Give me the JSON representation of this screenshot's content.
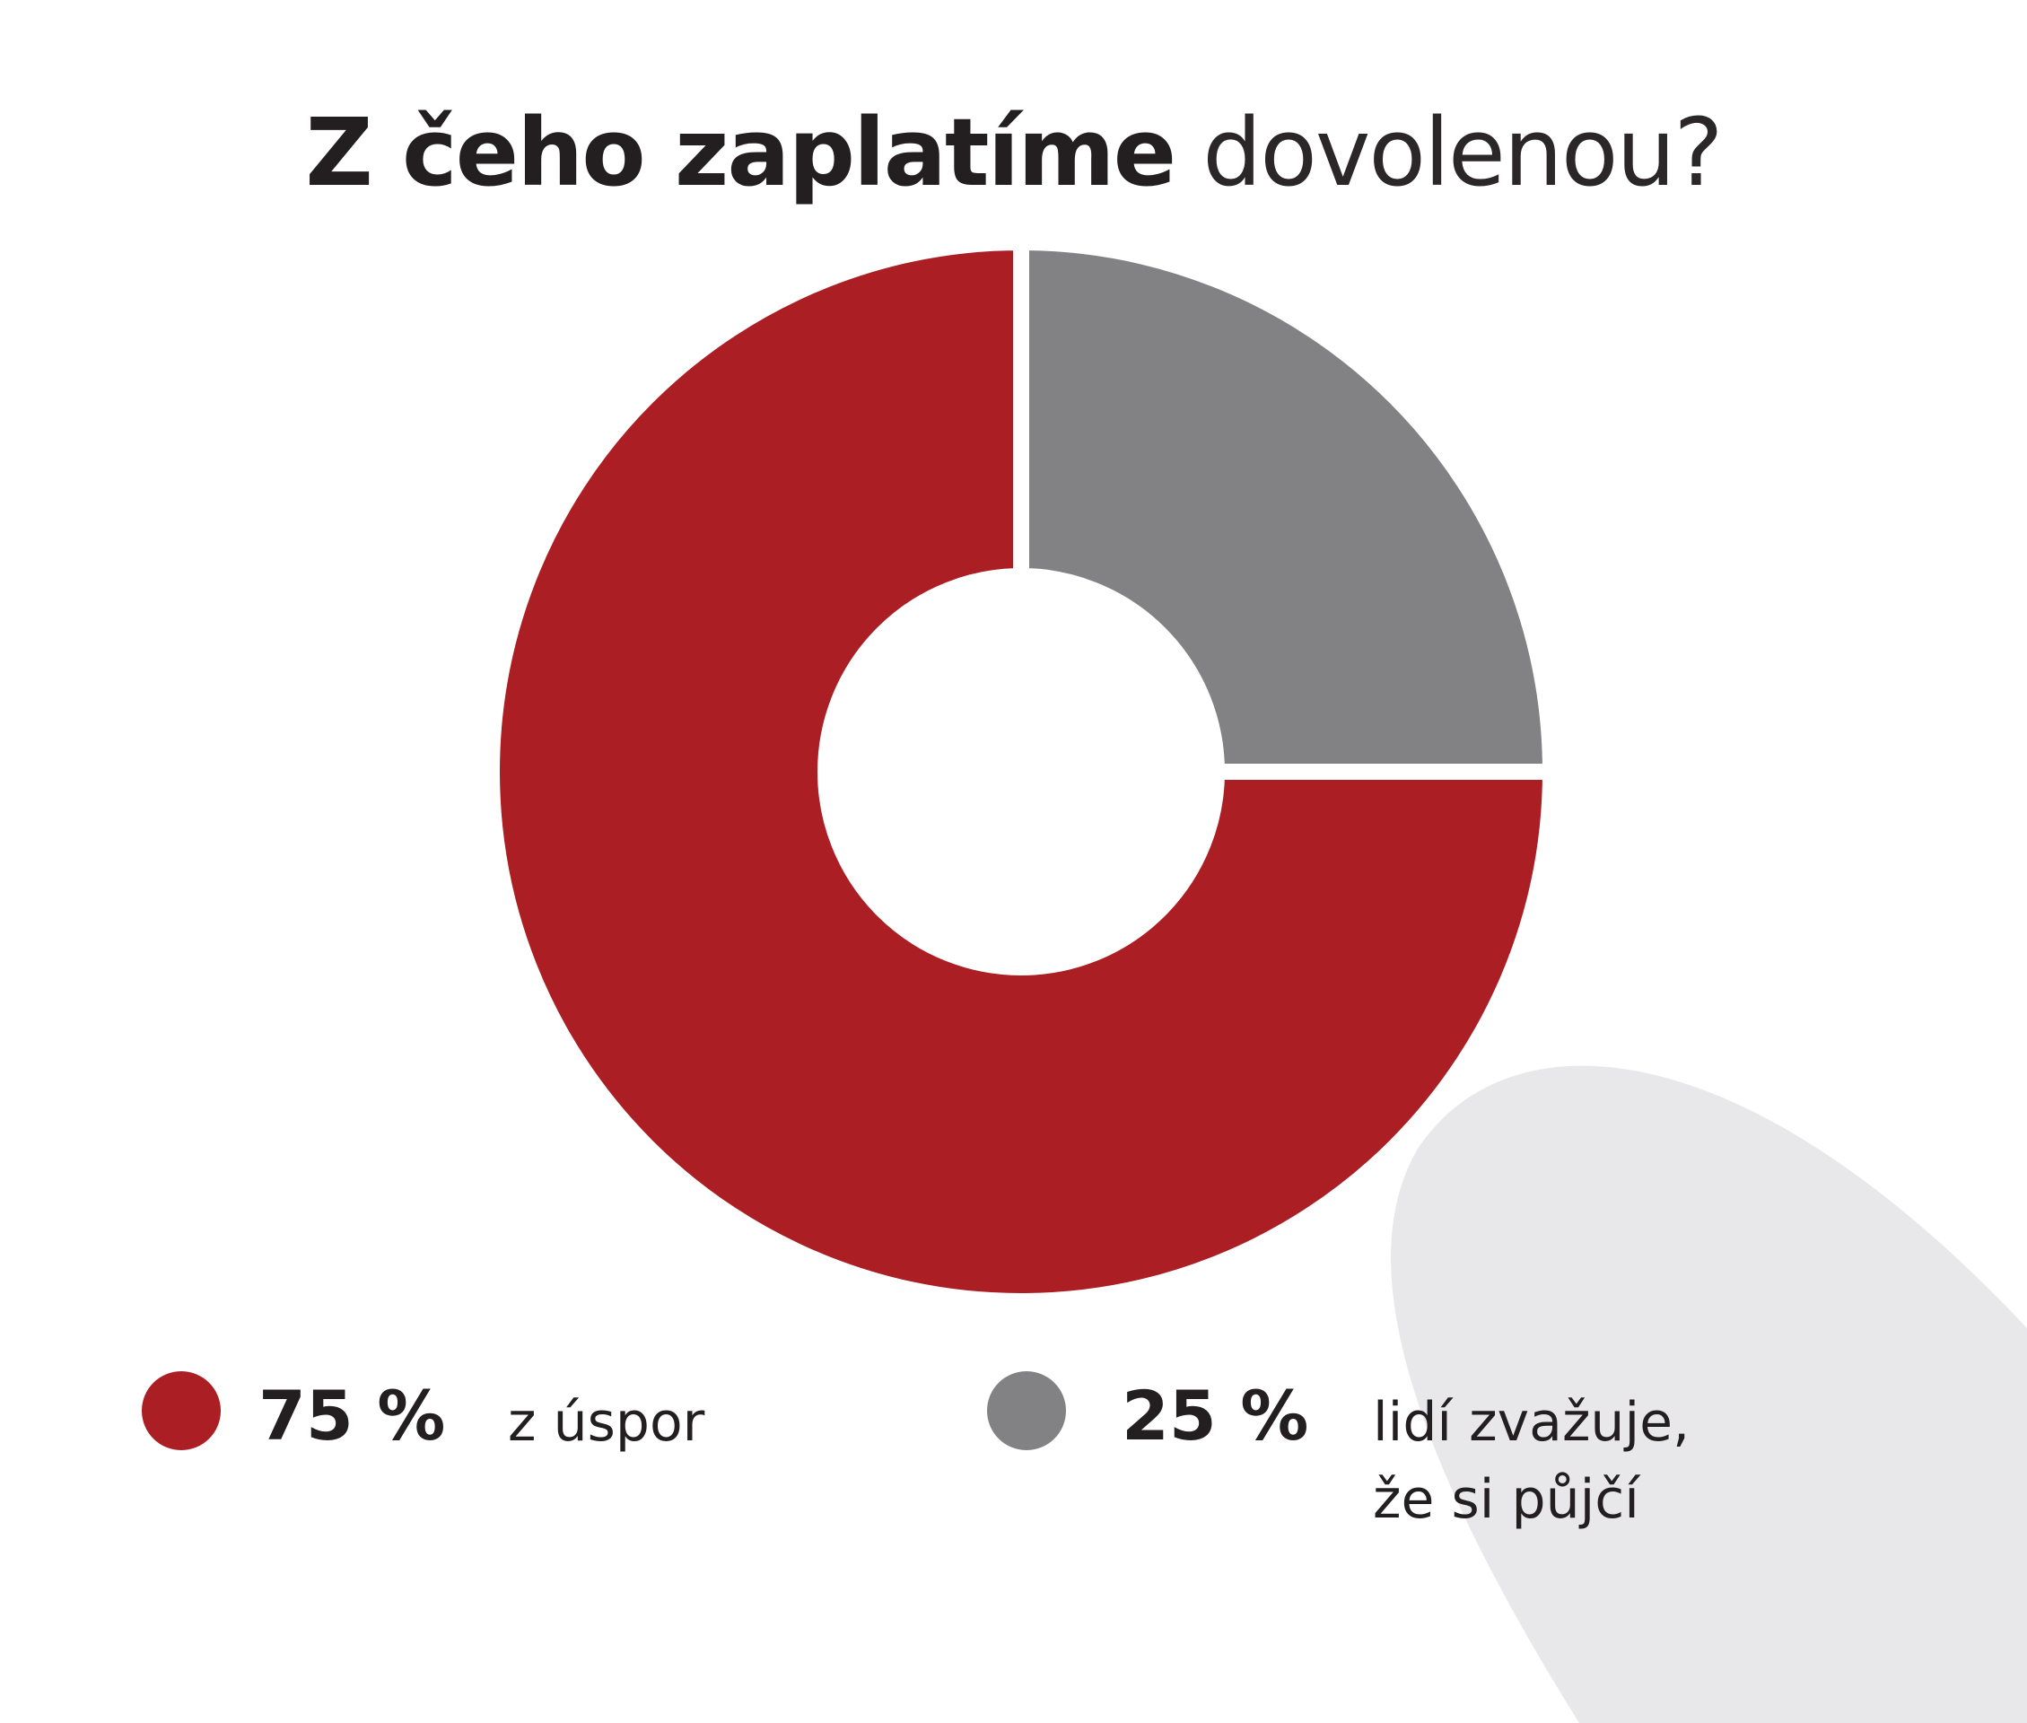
{
  "title": {
    "bold_part": "Z čeho zaplatíme",
    "regular_part": "dovolenou?"
  },
  "chart_data": {
    "type": "pie",
    "variant": "donut",
    "title": "Z čeho zaplatíme dovolenou?",
    "slices": [
      {
        "label": "z úspor",
        "value": 75,
        "value_label": "75 %",
        "color": "#aa1e24"
      },
      {
        "label": "lidí zvažuje, že si půjčí",
        "value": 25,
        "value_label": "25 %",
        "color": "#828284"
      }
    ],
    "legend_position": "bottom"
  },
  "legend": {
    "item1": {
      "pct": "75 %",
      "text_line1": "z úspor",
      "color": "#aa1e24"
    },
    "item2": {
      "pct": "25 %",
      "text_line1": "lidí zvažuje,",
      "text_line2": "že si půjčí",
      "color": "#828284"
    }
  },
  "colors": {
    "background": "#ffffff",
    "decoration": "#e8e8ea",
    "text": "#231f20"
  }
}
